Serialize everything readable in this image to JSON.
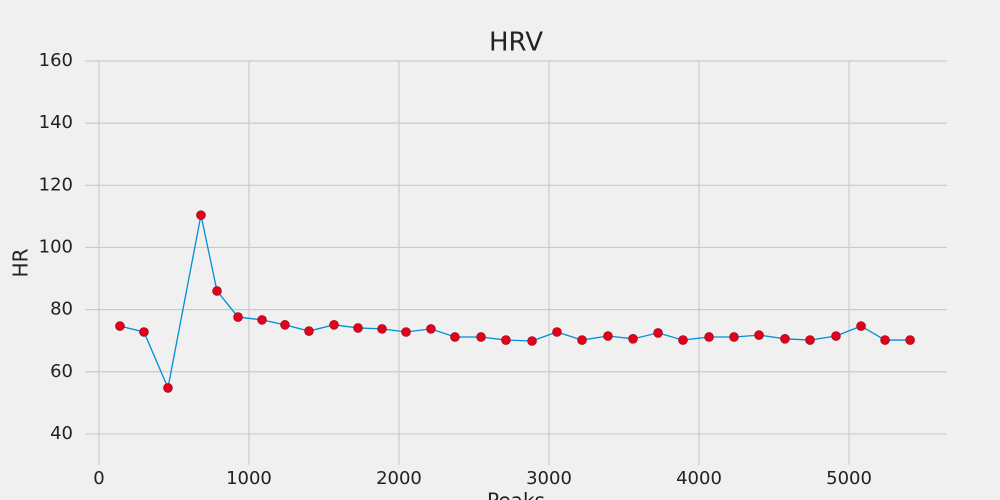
{
  "chart_data": {
    "type": "line",
    "title": "HRV",
    "xlabel": "Peaks",
    "ylabel": "HR",
    "x": [
      140,
      300,
      460,
      680,
      787,
      927,
      1087,
      1240,
      1400,
      1567,
      1727,
      1887,
      2047,
      2213,
      2373,
      2547,
      2713,
      2887,
      3053,
      3220,
      3393,
      3560,
      3727,
      3893,
      4067,
      4233,
      4400,
      4573,
      4740,
      4913,
      5080,
      5240,
      5407
    ],
    "values": [
      74.7,
      72.8,
      54.8,
      110.4,
      86,
      77.6,
      76.7,
      75.1,
      73.1,
      75.1,
      74.1,
      73.8,
      72.8,
      73.8,
      71.2,
      71.2,
      70.2,
      69.9,
      72.8,
      70.2,
      71.5,
      70.6,
      72.5,
      70.2,
      71.2,
      71.2,
      71.8,
      70.6,
      70.2,
      71.5,
      74.7,
      70.2,
      70.2
    ],
    "color": "#008fd5",
    "marker_color": "#e5001a",
    "xlim": [
      -93,
      5653
    ],
    "xticks": [
      0,
      1000,
      2000,
      3000,
      4000,
      5000
    ],
    "ylim": [
      30,
      160
    ],
    "yticks": [
      40,
      60,
      80,
      100,
      120,
      140,
      160
    ],
    "grid": true
  }
}
